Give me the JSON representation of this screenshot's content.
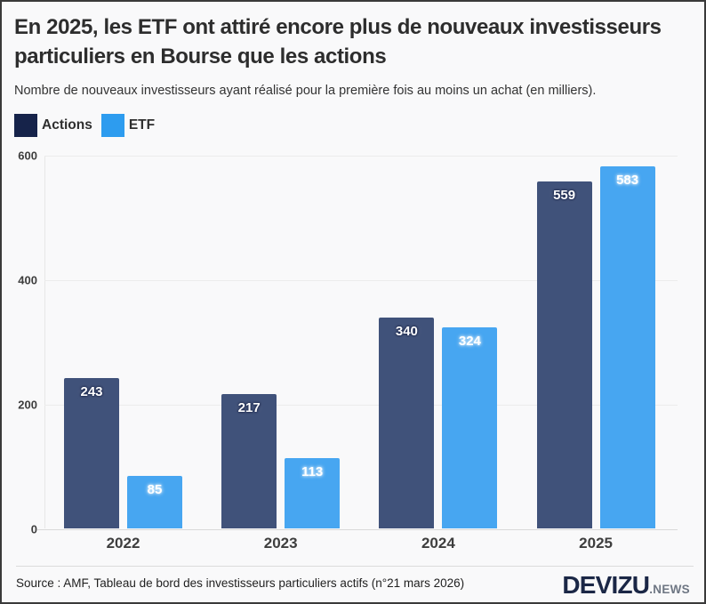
{
  "header": {
    "title": "En 2025, les ETF ont attiré encore plus de nouveaux investisseurs particuliers en Bourse que les actions",
    "subtitle": "Nombre de nouveaux investisseurs ayant réalisé pour la première fois au moins un achat (en milliers)."
  },
  "legend": [
    {
      "label": "Actions",
      "color": "#16234a"
    },
    {
      "label": "ETF",
      "color": "#2d9cef"
    }
  ],
  "chart_data": {
    "type": "bar",
    "title": "En 2025, les ETF ont attiré encore plus de nouveaux investisseurs particuliers en Bourse que les actions",
    "subtitle": "Nombre de nouveaux investisseurs ayant réalisé pour la première fois au moins un achat (en milliers).",
    "categories": [
      "2022",
      "2023",
      "2024",
      "2025"
    ],
    "series": [
      {
        "name": "Actions",
        "values": [
          243,
          217,
          340,
          559
        ],
        "bar_color": "#40527a",
        "legend_color": "#16234a",
        "halo": "dark-halo"
      },
      {
        "name": "ETF",
        "values": [
          85,
          113,
          324,
          583
        ],
        "bar_color": "#47a6f1",
        "legend_color": "#2d9cef",
        "halo": "light-halo"
      }
    ],
    "xlabel": "",
    "ylabel": "",
    "ylim": [
      0,
      600
    ],
    "yticks": [
      0,
      200,
      400,
      600
    ],
    "grid": "horizontal",
    "legend_position": "top-left",
    "value_labels": "inside-top"
  },
  "footer": {
    "source": "Source : AMF, Tableau de bord des investisseurs particuliers actifs (n°21 mars 2026)",
    "brand": "DEVIZU",
    "brand_suffix": ".NEWS"
  }
}
